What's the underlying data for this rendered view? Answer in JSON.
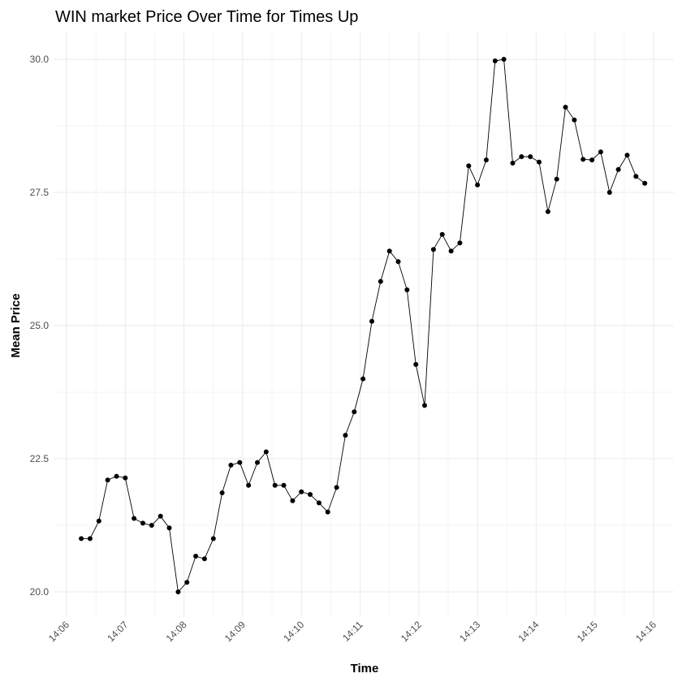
{
  "chart_data": {
    "type": "line",
    "title": "WIN market Price Over Time for Times Up",
    "xlabel": "Time",
    "ylabel": "Mean Price",
    "xlim": [
      "14:06",
      "14:16"
    ],
    "ylim": [
      20.0,
      30.0
    ],
    "x_ticks": [
      "14:06",
      "14:07",
      "14:08",
      "14:09",
      "14:10",
      "14:11",
      "14:12",
      "14:13",
      "14:14",
      "14:15",
      "14:16"
    ],
    "y_ticks": [
      "20.0",
      "22.5",
      "25.0",
      "27.5",
      "30.0"
    ],
    "grid": true,
    "legend": "none",
    "line_color": "#000000",
    "series": [
      {
        "x": [
          "14:06:15",
          "14:06:24",
          "14:06:33",
          "14:06:42",
          "14:06:51",
          "14:07:00",
          "14:07:09",
          "14:07:18",
          "14:07:27",
          "14:07:36",
          "14:07:45",
          "14:07:54",
          "14:08:03",
          "14:08:12",
          "14:08:21",
          "14:08:30",
          "14:08:39",
          "14:08:48",
          "14:08:57",
          "14:09:06",
          "14:09:15",
          "14:09:24",
          "14:09:33",
          "14:09:42",
          "14:09:51",
          "14:10:00",
          "14:10:09",
          "14:10:18",
          "14:10:27",
          "14:10:36",
          "14:10:45",
          "14:10:54",
          "14:11:03",
          "14:11:12",
          "14:11:21",
          "14:11:30",
          "14:11:39",
          "14:11:48",
          "14:11:57",
          "14:12:06",
          "14:12:15",
          "14:12:24",
          "14:12:33",
          "14:12:42",
          "14:12:51",
          "14:13:00",
          "14:13:09",
          "14:13:18",
          "14:13:27",
          "14:13:36",
          "14:13:45",
          "14:13:54",
          "14:14:03",
          "14:14:12",
          "14:14:21",
          "14:14:30",
          "14:14:39",
          "14:14:48",
          "14:14:57",
          "14:15:06",
          "14:15:15",
          "14:15:24",
          "14:15:33",
          "14:15:42",
          "14:15:51"
        ],
        "values": [
          21.0,
          21.0,
          21.33,
          22.1,
          22.17,
          22.14,
          21.38,
          21.29,
          21.25,
          21.42,
          21.2,
          20.0,
          20.18,
          20.67,
          20.62,
          21.0,
          21.86,
          22.38,
          22.43,
          22.0,
          22.43,
          22.63,
          22.0,
          22.0,
          21.71,
          21.88,
          21.83,
          21.67,
          21.5,
          21.96,
          22.94,
          23.38,
          24.0,
          25.08,
          25.83,
          26.4,
          26.2,
          25.67,
          24.27,
          23.5,
          26.43,
          26.71,
          26.4,
          26.55,
          28.0,
          27.64,
          28.11,
          29.97,
          30.0,
          28.05,
          28.17,
          28.17,
          28.07,
          27.14,
          27.75,
          29.1,
          28.86,
          28.12,
          28.11,
          28.26,
          27.5,
          27.93,
          28.2,
          27.8,
          27.67
        ]
      }
    ]
  }
}
